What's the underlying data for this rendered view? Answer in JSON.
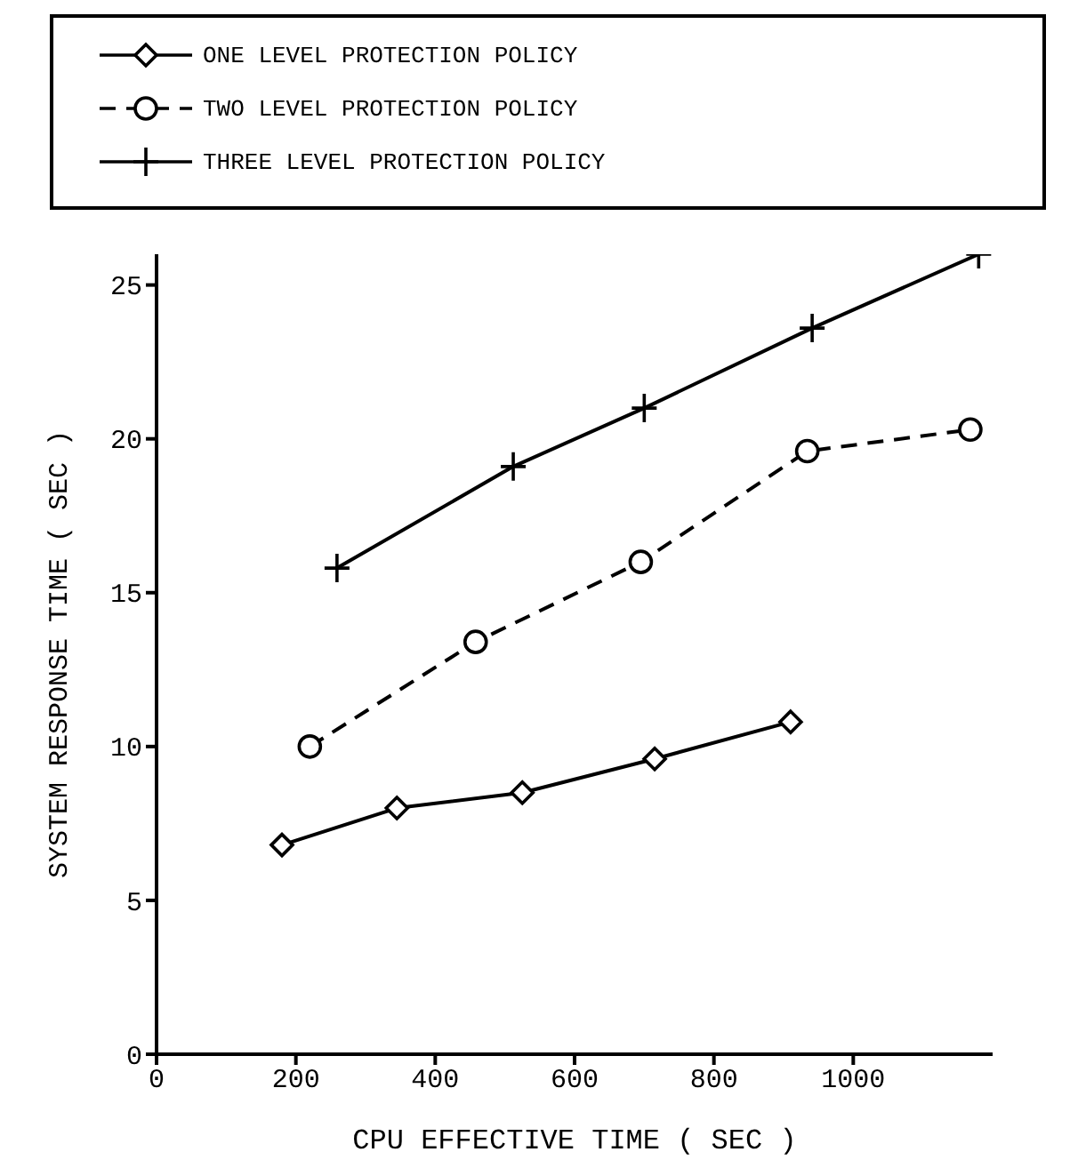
{
  "chart_data": {
    "type": "line",
    "xlabel": "CPU EFFECTIVE TIME ( SEC )",
    "ylabel": "SYSTEM RESPONSE TIME ( SEC )",
    "xlim": [
      0,
      1200
    ],
    "xticks": [
      0,
      200,
      400,
      600,
      800,
      1000
    ],
    "ylim": [
      0,
      26
    ],
    "yticks": [
      0,
      5,
      10,
      15,
      20,
      25
    ],
    "grid": false,
    "legend": "top",
    "series": [
      {
        "name": "ONE LEVEL PROTECTION POLICY",
        "color": "#000000",
        "marker": "diamond",
        "line_style": "solid",
        "x": [
          180,
          345,
          525,
          715,
          910
        ],
        "values": [
          6.8,
          8.0,
          8.5,
          9.6,
          10.8
        ]
      },
      {
        "name": "TWO LEVEL PROTECTION POLICY",
        "color": "#000000",
        "marker": "circle",
        "line_style": "dashed",
        "x": [
          220,
          458,
          695,
          934,
          1168
        ],
        "values": [
          10.0,
          13.4,
          16.0,
          19.6,
          20.3
        ]
      },
      {
        "name": "THREE LEVEL PROTECTION POLICY",
        "color": "#000000",
        "marker": "cross",
        "line_style": "solid",
        "x": [
          259,
          512,
          700,
          941,
          1180
        ],
        "values": [
          15.8,
          19.1,
          21.0,
          23.6,
          26.0
        ]
      }
    ]
  }
}
